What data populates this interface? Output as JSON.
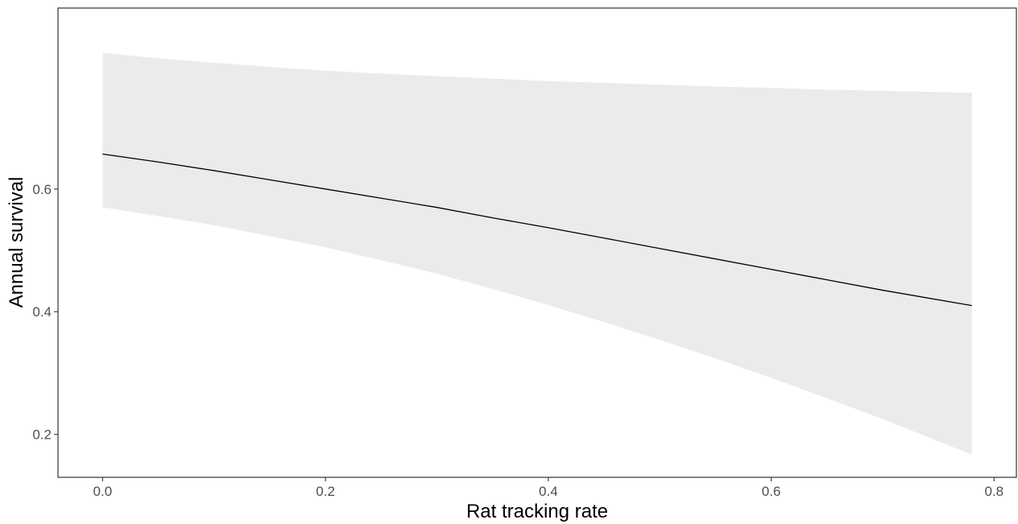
{
  "chart_data": {
    "type": "line",
    "title": "",
    "xlabel": "Rat tracking rate",
    "ylabel": "Annual survival",
    "xlim": [
      -0.04,
      0.82
    ],
    "ylim": [
      0.13,
      0.895
    ],
    "grid": false,
    "x_ticks": [
      0.0,
      0.2,
      0.4,
      0.6,
      0.8
    ],
    "x_tick_labels": [
      "0.0",
      "0.2",
      "0.4",
      "0.6",
      "0.8"
    ],
    "y_ticks": [
      0.2,
      0.4,
      0.6
    ],
    "y_tick_labels": [
      "0.2",
      "0.4",
      "0.6"
    ],
    "series": [
      {
        "x": [
          0.0,
          0.05,
          0.1,
          0.15,
          0.2,
          0.25,
          0.3,
          0.35,
          0.4,
          0.45,
          0.5,
          0.55,
          0.6,
          0.65,
          0.7,
          0.78
        ],
        "y": [
          0.657,
          0.644,
          0.63,
          0.615,
          0.6,
          0.585,
          0.57,
          0.553,
          0.537,
          0.52,
          0.503,
          0.486,
          0.469,
          0.452,
          0.435,
          0.41
        ],
        "lower": [
          0.57,
          0.556,
          0.541,
          0.523,
          0.505,
          0.484,
          0.462,
          0.437,
          0.411,
          0.383,
          0.354,
          0.324,
          0.292,
          0.259,
          0.225,
          0.167
        ],
        "upper": [
          0.822,
          0.813,
          0.806,
          0.799,
          0.793,
          0.788,
          0.784,
          0.78,
          0.776,
          0.773,
          0.77,
          0.767,
          0.765,
          0.762,
          0.76,
          0.757
        ]
      }
    ],
    "colors": {
      "line": "#000000",
      "band": "#ebebeb",
      "panel_border": "#333333",
      "tick_label": "#4d4d4d"
    }
  }
}
